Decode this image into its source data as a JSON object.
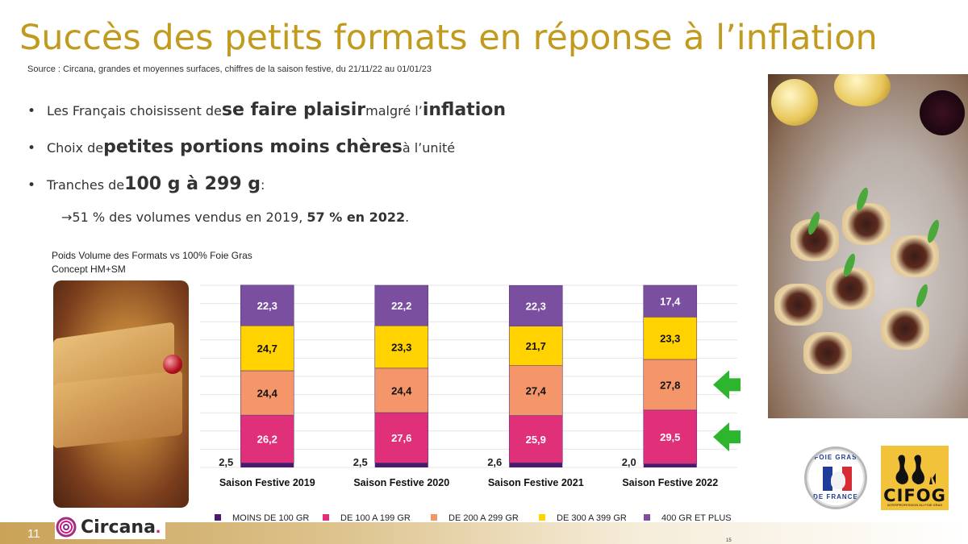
{
  "header": {
    "title": "Succès des petits formats en réponse à l’inflation",
    "source": "Source : Circana, grandes et moyennes surfaces, chiffres de la saison festive, du 21/11/22  au 01/01/23"
  },
  "bullets": [
    {
      "parts": [
        {
          "text": "Les Français choisissent de ",
          "style": "small"
        },
        {
          "text": "se faire plaisir",
          "style": "big"
        },
        {
          "text": " malgré l’",
          "style": "small"
        },
        {
          "text": "inflation",
          "style": "big"
        }
      ]
    },
    {
      "parts": [
        {
          "text": "Choix de ",
          "style": "small"
        },
        {
          "text": "petites portions moins chères",
          "style": "big"
        },
        {
          "text": " à l’unité",
          "style": "small"
        }
      ]
    },
    {
      "parts": [
        {
          "text": "Tranches de ",
          "style": "small"
        },
        {
          "text": "100 g à 299 g",
          "style": "big"
        },
        {
          "text": " :",
          "style": "small"
        }
      ]
    }
  ],
  "sub_bullet": {
    "arrow": "→",
    "text": "51 % des volumes vendus en 2019, ",
    "bold": "57 % en 2022",
    "end": "."
  },
  "chart_caption": {
    "line1": "Poids Volume des Formats vs 100% Foie Gras",
    "line2": "Concept HM+SM"
  },
  "chart_data": {
    "type": "bar",
    "stacked": true,
    "categories": [
      "Saison Festive 2019",
      "Saison Festive 2020",
      "Saison Festive 2021",
      "Saison Festive 2022"
    ],
    "series": [
      {
        "name": "MOINS DE 100 GR",
        "color": "#4b1a6e",
        "values": [
          2.5,
          2.5,
          2.6,
          2.0
        ],
        "labels": [
          "2,5",
          "2,5",
          "2,6",
          "2,0"
        ]
      },
      {
        "name": "DE 100 A 199 GR",
        "color": "#e0307a",
        "values": [
          26.2,
          27.6,
          25.9,
          29.5
        ],
        "labels": [
          "26,2",
          "27,6",
          "25,9",
          "29,5"
        ]
      },
      {
        "name": "DE 200 A 299 GR",
        "color": "#f4956a",
        "values": [
          24.4,
          24.4,
          27.4,
          27.8
        ],
        "labels": [
          "24,4",
          "24,4",
          "27,4",
          "27,8"
        ]
      },
      {
        "name": "DE 300 A 399 GR",
        "color": "#ffd200",
        "values": [
          24.7,
          23.3,
          21.7,
          23.3
        ],
        "labels": [
          "24,7",
          "23,3",
          "21,7",
          "23,3"
        ]
      },
      {
        "name": "400 GR ET PLUS",
        "color": "#7b4fa0",
        "values": [
          22.3,
          22.2,
          22.3,
          17.4
        ],
        "labels": [
          "22,3",
          "22,2",
          "22,3",
          "17,4"
        ]
      }
    ],
    "ylim": [
      0,
      100
    ],
    "grid": true,
    "legend": "bottom",
    "highlight_arrows": [
      "DE 100 A 199 GR",
      "DE 200 A 299 GR"
    ],
    "arrow_color": "#2db52d"
  },
  "logos": {
    "fgf_top": "FOIE GRAS",
    "fgf_bottom": "DE FRANCE",
    "cifog_name": "CIFOG",
    "cifog_tag": "INTERPROFESSION DU FOIE GRAS",
    "circana": "Circana"
  },
  "footer": {
    "slide_number": "11",
    "page_number": "15"
  },
  "photos": {
    "left": "foie-gras-slices-photo",
    "right": "foie-gras-toasts-photo"
  }
}
